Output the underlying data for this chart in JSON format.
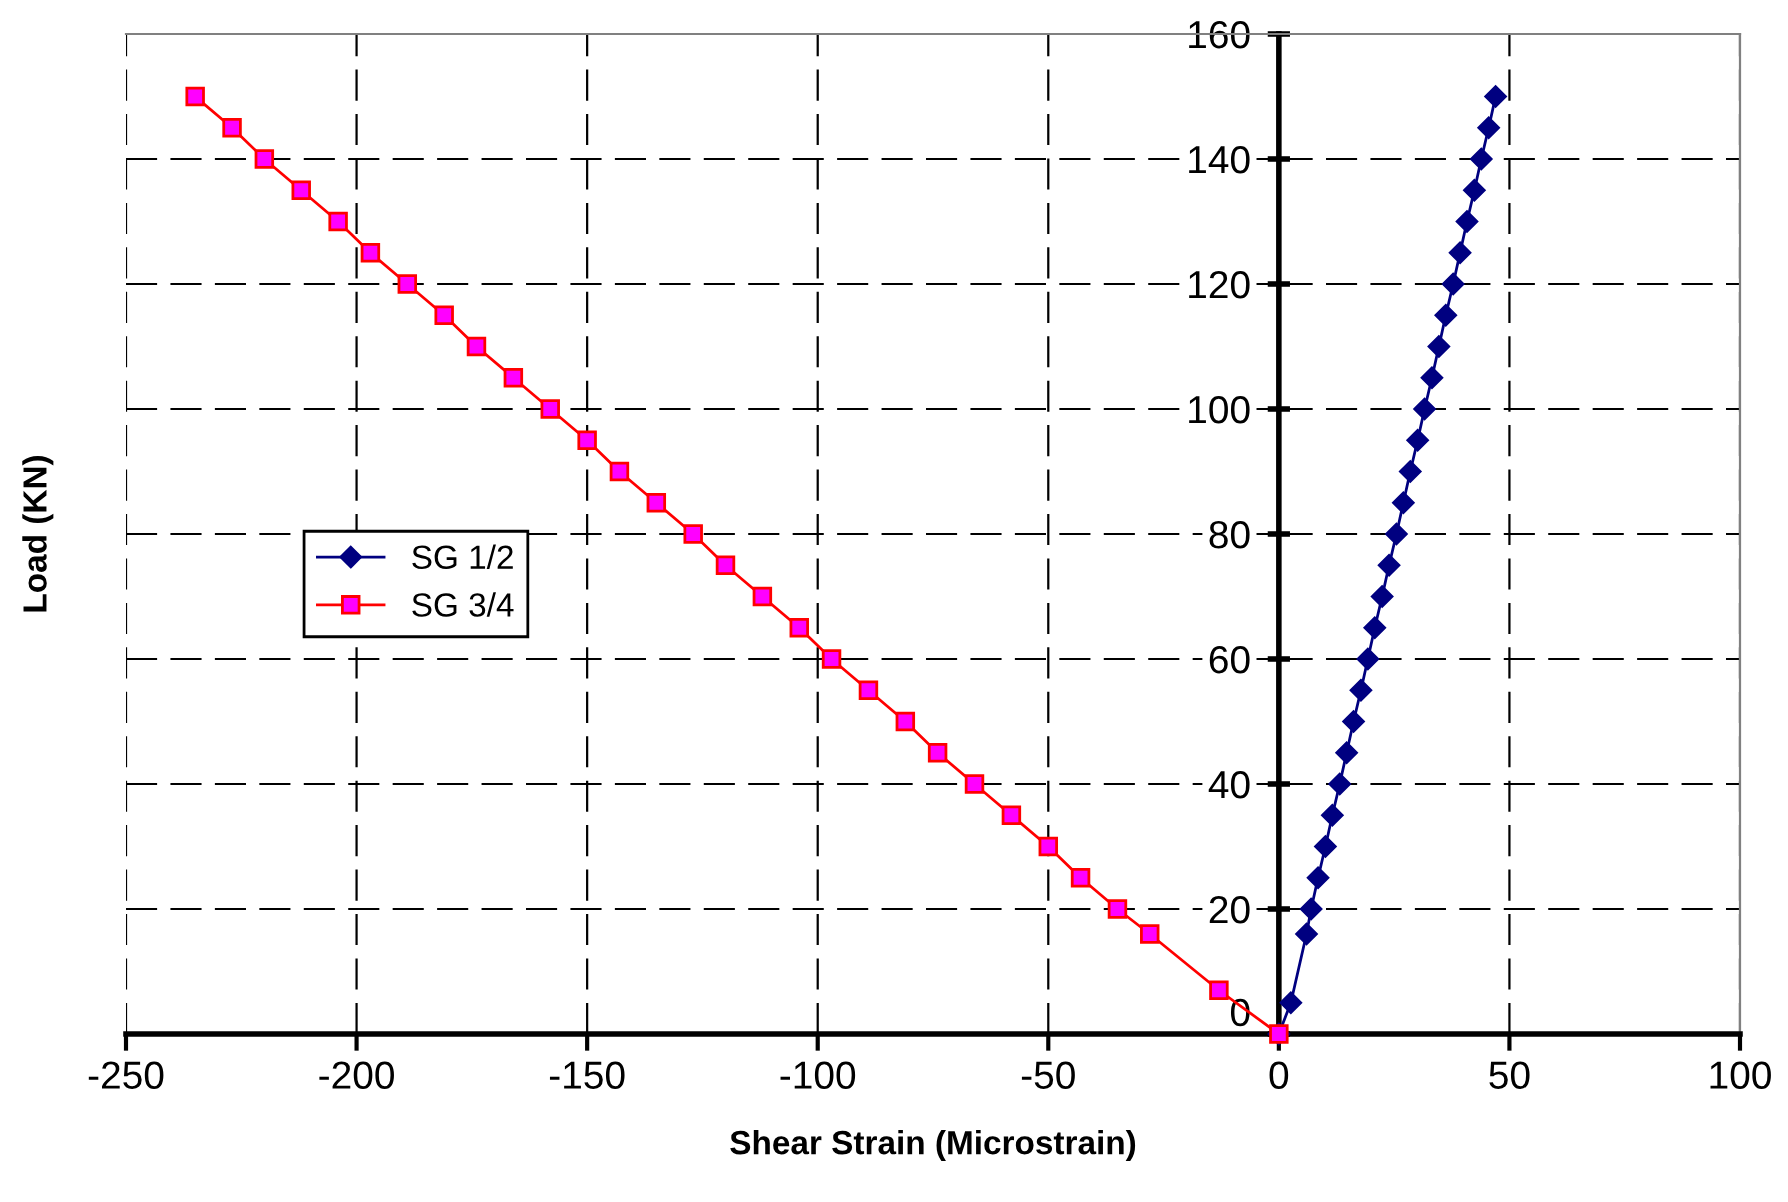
{
  "chart_data": {
    "type": "line",
    "xlabel": "Shear Strain (Microstrain)",
    "ylabel": "Load (KN)",
    "xlim": [
      -250,
      100
    ],
    "xticks": [
      -250,
      -200,
      -150,
      -100,
      -50,
      0,
      50,
      100
    ],
    "ylim": [
      0,
      160
    ],
    "yticks": [
      0,
      20,
      40,
      60,
      80,
      100,
      120,
      140,
      160
    ],
    "grid": true,
    "legend": "left",
    "series": [
      {
        "name": "SG 1/2",
        "color": "#000080",
        "marker": "diamond",
        "x": [
          0,
          2.6,
          6,
          7,
          8.5,
          10.1,
          11.6,
          13.2,
          14.7,
          16.2,
          17.8,
          19.3,
          20.8,
          22.4,
          23.9,
          25.5,
          27,
          28.5,
          30.1,
          31.6,
          33.2,
          34.7,
          36.2,
          37.8,
          39.3,
          40.8,
          42.4,
          43.9,
          45.5,
          47
        ],
        "values": [
          0,
          5,
          16,
          20,
          25,
          30,
          35,
          40,
          45,
          50,
          55,
          60,
          65,
          70,
          75,
          80,
          85,
          90,
          95,
          100,
          105,
          110,
          115,
          120,
          125,
          130,
          135,
          140,
          145,
          150
        ]
      },
      {
        "name": "SG 3/4",
        "color": "#ff0000",
        "marker": "square",
        "x": [
          0,
          -13,
          -28,
          -35,
          -43,
          -50,
          -58,
          -66,
          -74,
          -81,
          -89,
          -97,
          -104,
          -112,
          -120,
          -127,
          -135,
          -143,
          -150,
          -158,
          -166,
          -174,
          -181,
          -189,
          -197,
          -204,
          -212,
          -220,
          -227,
          -235
        ],
        "values": [
          0,
          7,
          16,
          20,
          25,
          30,
          35,
          40,
          45,
          50,
          55,
          60,
          65,
          70,
          75,
          80,
          85,
          90,
          95,
          100,
          105,
          110,
          115,
          120,
          125,
          130,
          135,
          140,
          145,
          150
        ]
      }
    ]
  }
}
